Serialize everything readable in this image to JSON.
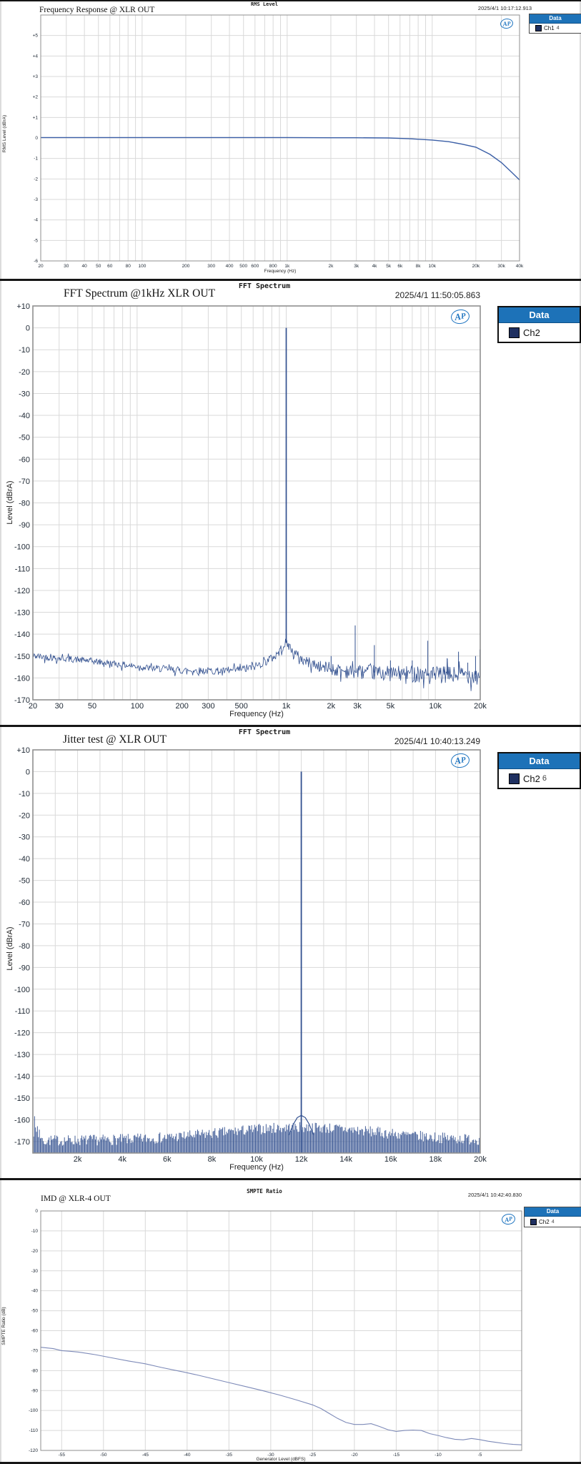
{
  "colors": {
    "legend_header_bg": "#1d72b8",
    "legend_swatch": "#1f3061",
    "trace_blue": "#3a5ea6",
    "fft_trace": "#32508f",
    "imd_trace": "#7d8ab8",
    "grid": "#d9d9d9",
    "plot_border": "#8f8f8f"
  },
  "chart_data": [
    {
      "type": "line",
      "window_title": "RMS Level",
      "title": "Frequency Response @ XLR OUT",
      "timestamp": "2025/4/1 10:17:12.913",
      "legend": {
        "header": "Data",
        "label": "Ch1",
        "suffix": "4"
      },
      "xlabel": "Frequency (Hz)",
      "ylabel": "RMS Level (dBrA)",
      "xscale": "log",
      "xlim": [
        20,
        40000
      ],
      "ylim": [
        -6,
        6
      ],
      "xtick_vals": [
        20,
        30,
        40,
        50,
        60,
        80,
        100,
        200,
        300,
        400,
        500,
        600,
        800,
        1000,
        2000,
        3000,
        4000,
        5000,
        6000,
        8000,
        10000,
        20000,
        30000,
        40000
      ],
      "xtick_labels": [
        "20",
        "30",
        "40",
        "50",
        "60",
        "80",
        "100",
        "200",
        "300",
        "400",
        "500",
        "600",
        "800",
        "1k",
        "2k",
        "3k",
        "4k",
        "5k",
        "6k",
        "8k",
        "10k",
        "20k",
        "30k",
        "40k"
      ],
      "ytick_vals": [
        5,
        4,
        3,
        2,
        1,
        0,
        -1,
        -2,
        -3,
        -4,
        -5,
        -6
      ],
      "ytick_labels": [
        "+5",
        "+4",
        "+3",
        "+2",
        "+1",
        "0",
        "-1",
        "-2",
        "-3",
        "-4",
        "-5",
        "-6"
      ],
      "points": [
        [
          20,
          0.02
        ],
        [
          50,
          0.02
        ],
        [
          100,
          0.02
        ],
        [
          200,
          0.02
        ],
        [
          500,
          0.02
        ],
        [
          1000,
          0.02
        ],
        [
          2000,
          0.01
        ],
        [
          3000,
          0.01
        ],
        [
          5000,
          0.0
        ],
        [
          7000,
          -0.04
        ],
        [
          10000,
          -0.1
        ],
        [
          13000,
          -0.18
        ],
        [
          16000,
          -0.3
        ],
        [
          20000,
          -0.45
        ],
        [
          25000,
          -0.8
        ],
        [
          30000,
          -1.2
        ],
        [
          35000,
          -1.65
        ],
        [
          40000,
          -2.05
        ]
      ]
    },
    {
      "type": "fft-log",
      "window_title": "FFT Spectrum",
      "title": "FFT Spectrum @1kHz XLR OUT",
      "timestamp": "2025/4/1 11:50:05.863",
      "legend": {
        "header": "Data",
        "label": "Ch2",
        "suffix": ""
      },
      "xlabel": "Frequency (Hz)",
      "ylabel": "Level (dBrA)",
      "xscale": "log",
      "xlim": [
        20,
        20000
      ],
      "ylim": [
        -170,
        10
      ],
      "xtick_vals": [
        20,
        30,
        50,
        100,
        200,
        300,
        500,
        1000,
        2000,
        3000,
        5000,
        10000,
        20000
      ],
      "xtick_labels": [
        "20",
        "30",
        "50",
        "100",
        "200",
        "300",
        "500",
        "1k",
        "2k",
        "3k",
        "5k",
        "10k",
        "20k"
      ],
      "ytick_vals": [
        10,
        0,
        -10,
        -20,
        -30,
        -40,
        -50,
        -60,
        -70,
        -80,
        -90,
        -100,
        -110,
        -120,
        -130,
        -140,
        -150,
        -160,
        -170
      ],
      "ytick_labels": [
        "+10",
        "0",
        "-10",
        "-20",
        "-30",
        "-40",
        "-50",
        "-60",
        "-70",
        "-80",
        "-90",
        "-100",
        "-110",
        "-120",
        "-130",
        "-140",
        "-150",
        "-160",
        "-170"
      ],
      "peak": {
        "freq": 1000,
        "level": 0
      },
      "spurs": [
        [
          2000,
          -150
        ],
        [
          2900,
          -136
        ],
        [
          3900,
          -145
        ],
        [
          5000,
          -152
        ],
        [
          7000,
          -152
        ],
        [
          8900,
          -143
        ],
        [
          12000,
          -151
        ],
        [
          14300,
          -148
        ],
        [
          16500,
          -153
        ],
        [
          18600,
          -150
        ],
        [
          19900,
          -147
        ]
      ],
      "noise_floor": [
        [
          20,
          -150
        ],
        [
          30,
          -151
        ],
        [
          45,
          -152
        ],
        [
          60,
          -153
        ],
        [
          80,
          -154
        ],
        [
          120,
          -155.5
        ],
        [
          200,
          -156.5
        ],
        [
          400,
          -157
        ],
        [
          600,
          -155
        ],
        [
          800,
          -151
        ],
        [
          900,
          -148
        ],
        [
          960,
          -145
        ],
        [
          1000,
          -144
        ],
        [
          1040,
          -145
        ],
        [
          1100,
          -148
        ],
        [
          1300,
          -152
        ],
        [
          1700,
          -155
        ],
        [
          2500,
          -157
        ],
        [
          5000,
          -158
        ],
        [
          10000,
          -158.5
        ],
        [
          20000,
          -158.5
        ]
      ],
      "noise_amp": [
        [
          20,
          1.5
        ],
        [
          500,
          1.8
        ],
        [
          1000,
          2.2
        ],
        [
          2000,
          3
        ],
        [
          5000,
          3.6
        ],
        [
          20000,
          4.2
        ]
      ]
    },
    {
      "type": "fft-linear-bars",
      "window_title": "FFT Spectrum",
      "title": "Jitter test @ XLR OUT",
      "timestamp": "2025/4/1 10:40:13.249",
      "legend": {
        "header": "Data",
        "label": "Ch2",
        "suffix": "6"
      },
      "xlabel": "Frequency (Hz)",
      "ylabel": "Level (dBrA)",
      "xscale": "linear",
      "xlim": [
        0,
        20000
      ],
      "ylim": [
        -175.3,
        10
      ],
      "xtick_vals": [
        2000,
        4000,
        6000,
        8000,
        10000,
        12000,
        14000,
        16000,
        18000,
        20000
      ],
      "xtick_labels": [
        "2k",
        "4k",
        "6k",
        "8k",
        "10k",
        "12k",
        "14k",
        "16k",
        "18k",
        "20k"
      ],
      "ytick_vals": [
        10,
        0,
        -10,
        -20,
        -30,
        -40,
        -50,
        -60,
        -70,
        -80,
        -90,
        -100,
        -110,
        -120,
        -130,
        -140,
        -150,
        -160,
        -170
      ],
      "ytick_labels": [
        "+10",
        "0",
        "-10",
        "-20",
        "-30",
        "-40",
        "-50",
        "-60",
        "-70",
        "-80",
        "-90",
        "-100",
        "-110",
        "-120",
        "-130",
        "-140",
        "-150",
        "-160",
        "-170"
      ],
      "peak": {
        "freq": 12000,
        "level": 0
      },
      "peak_base": [
        [
          11450,
          -167
        ],
        [
          11650,
          -162
        ],
        [
          11820,
          -159
        ],
        [
          12000,
          -158
        ],
        [
          12180,
          -159
        ],
        [
          12350,
          -162
        ],
        [
          12550,
          -167
        ]
      ],
      "noise": {
        "baseline": -169.5,
        "amp": 5,
        "hump_center": 12000,
        "hump_sigma": 5000,
        "hump_height": 6,
        "left_boost_below": 500,
        "left_boost_max": 13,
        "bottom": -175.3
      }
    },
    {
      "type": "line",
      "window_title": "SMPTE Ratio",
      "title": "IMD @ XLR-4 OUT",
      "timestamp": "2025/4/1 10:42:40.830",
      "legend": {
        "header": "Data",
        "label": "Ch2",
        "suffix": "4"
      },
      "xlabel": "Generator Level (dBFS)",
      "ylabel": "SMPTE Ratio (dB)",
      "xscale": "linear",
      "xlim": [
        -57.5,
        0
      ],
      "ylim": [
        -120,
        0
      ],
      "xtick_vals": [
        -55,
        -50,
        -45,
        -40,
        -35,
        -30,
        -25,
        -20,
        -15,
        -10,
        -5
      ],
      "xtick_labels": [
        "-55",
        "-50",
        "-45",
        "-40",
        "-35",
        "-30",
        "-25",
        "-20",
        "-15",
        "-10",
        "-5"
      ],
      "ytick_vals": [
        0,
        -10,
        -20,
        -30,
        -40,
        -50,
        -60,
        -70,
        -80,
        -90,
        -100,
        -110,
        -120
      ],
      "ytick_labels": [
        "0",
        "-10",
        "-20",
        "-30",
        "-40",
        "-50",
        "-60",
        "-70",
        "-80",
        "-90",
        "-100",
        "-110",
        "-120"
      ],
      "points": [
        [
          -57.5,
          -68.3
        ],
        [
          -56,
          -69
        ],
        [
          -55,
          -70
        ],
        [
          -54,
          -70.3
        ],
        [
          -53,
          -70.7
        ],
        [
          -51,
          -72
        ],
        [
          -49,
          -73.6
        ],
        [
          -47,
          -75.2
        ],
        [
          -45,
          -76.6
        ],
        [
          -43,
          -78.5
        ],
        [
          -41,
          -80.2
        ],
        [
          -39,
          -82
        ],
        [
          -37,
          -84
        ],
        [
          -35,
          -86
        ],
        [
          -33,
          -88
        ],
        [
          -31,
          -90
        ],
        [
          -29,
          -92.2
        ],
        [
          -27,
          -94.6
        ],
        [
          -25,
          -97.2
        ],
        [
          -24,
          -99
        ],
        [
          -23,
          -101.5
        ],
        [
          -22,
          -104
        ],
        [
          -21,
          -106
        ],
        [
          -20,
          -107
        ],
        [
          -19,
          -107
        ],
        [
          -18,
          -106.6
        ],
        [
          -17,
          -108
        ],
        [
          -16,
          -109.6
        ],
        [
          -15,
          -110.5
        ],
        [
          -14,
          -110
        ],
        [
          -13,
          -109.8
        ],
        [
          -12,
          -110
        ],
        [
          -11,
          -111.6
        ],
        [
          -10,
          -112.5
        ],
        [
          -9,
          -113.6
        ],
        [
          -8,
          -114.4
        ],
        [
          -7,
          -114.7
        ],
        [
          -6,
          -114
        ],
        [
          -5,
          -114.6
        ],
        [
          -4,
          -115.4
        ],
        [
          -3,
          -116
        ],
        [
          -2,
          -116.6
        ],
        [
          -1,
          -117
        ],
        [
          0,
          -117.2
        ]
      ]
    }
  ]
}
